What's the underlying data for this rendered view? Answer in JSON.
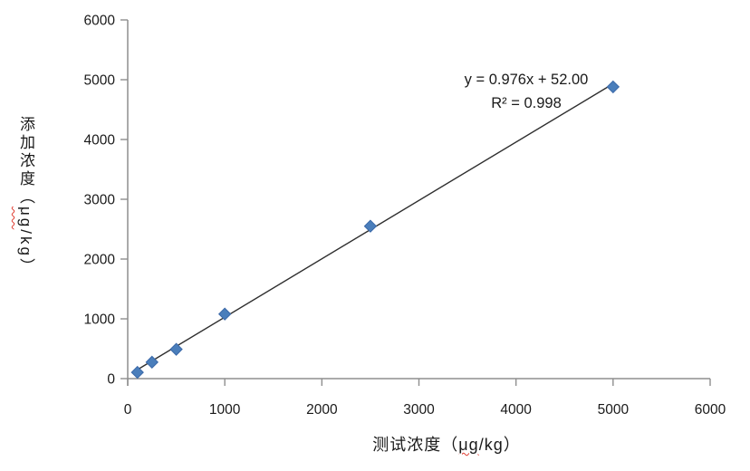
{
  "chart_data": {
    "type": "scatter",
    "title": "",
    "xlabel": "测试浓度（μg/kg）",
    "ylabel": "添加浓度（μg/kg）",
    "xlabel_parts": {
      "prefix": "测试浓度（",
      "unit": "μg",
      "suffix": "/kg）"
    },
    "ylabel_parts": {
      "prefix": "添加浓度（",
      "unit": "μg",
      "suffix": "/kg）"
    },
    "x": [
      100,
      250,
      500,
      1000,
      2500,
      5000
    ],
    "y": [
      105,
      275,
      490,
      1080,
      2550,
      4880
    ],
    "xlim": [
      0,
      6000
    ],
    "ylim": [
      0,
      6000
    ],
    "x_ticks": [
      0,
      1000,
      2000,
      3000,
      4000,
      5000,
      6000
    ],
    "y_ticks": [
      0,
      1000,
      2000,
      3000,
      4000,
      5000,
      6000
    ],
    "grid": false,
    "legend": null,
    "trendline": {
      "slope": 0.976,
      "intercept": 52.0,
      "x_start": 100,
      "x_end": 5000
    },
    "annotation": {
      "line1": "y = 0.976x + 52.00",
      "line2": "R² = 0.998"
    },
    "colors": {
      "marker_fill": "#4a7ebb",
      "marker_stroke": "#3a68a8",
      "trendline": "#2e2e2e",
      "axis": "#8e8e8e",
      "text": "#1a1a1a",
      "misspell_underline": "#e03c31"
    },
    "marker": {
      "shape": "diamond",
      "half_diagonal": 6.5
    }
  }
}
